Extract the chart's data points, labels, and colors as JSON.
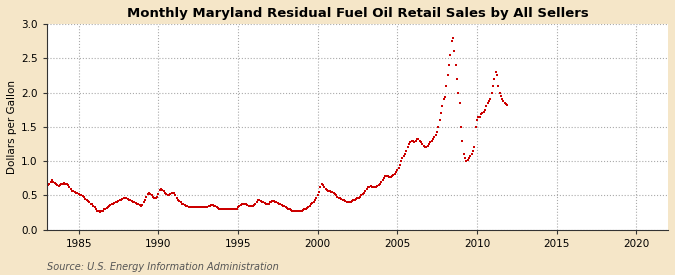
{
  "title": "Monthly Maryland Residual Fuel Oil Retail Sales by All Sellers",
  "ylabel": "Dollars per Gallon",
  "source": "Source: U.S. Energy Information Administration",
  "background_color": "#f5e6c8",
  "plot_bg_color": "#ffffff",
  "line_color": "#cc0000",
  "xlim": [
    1983,
    2022
  ],
  "ylim": [
    0.0,
    3.0
  ],
  "xticks": [
    1985,
    1990,
    1995,
    2000,
    2005,
    2010,
    2015,
    2020
  ],
  "yticks": [
    0.0,
    0.5,
    1.0,
    1.5,
    2.0,
    2.5,
    3.0
  ],
  "data": [
    [
      1983.0,
      0.63
    ],
    [
      1983.08,
      0.65
    ],
    [
      1983.17,
      0.67
    ],
    [
      1983.25,
      0.7
    ],
    [
      1983.33,
      0.72
    ],
    [
      1983.42,
      0.7
    ],
    [
      1983.5,
      0.68
    ],
    [
      1983.58,
      0.67
    ],
    [
      1983.67,
      0.65
    ],
    [
      1983.75,
      0.64
    ],
    [
      1983.83,
      0.65
    ],
    [
      1983.92,
      0.66
    ],
    [
      1984.0,
      0.67
    ],
    [
      1984.08,
      0.68
    ],
    [
      1984.17,
      0.67
    ],
    [
      1984.25,
      0.66
    ],
    [
      1984.33,
      0.65
    ],
    [
      1984.42,
      0.62
    ],
    [
      1984.5,
      0.59
    ],
    [
      1984.58,
      0.57
    ],
    [
      1984.67,
      0.56
    ],
    [
      1984.75,
      0.55
    ],
    [
      1984.83,
      0.54
    ],
    [
      1984.92,
      0.53
    ],
    [
      1985.0,
      0.52
    ],
    [
      1985.08,
      0.51
    ],
    [
      1985.17,
      0.5
    ],
    [
      1985.25,
      0.49
    ],
    [
      1985.33,
      0.48
    ],
    [
      1985.42,
      0.45
    ],
    [
      1985.5,
      0.43
    ],
    [
      1985.58,
      0.42
    ],
    [
      1985.67,
      0.4
    ],
    [
      1985.75,
      0.38
    ],
    [
      1985.83,
      0.37
    ],
    [
      1985.92,
      0.35
    ],
    [
      1986.0,
      0.33
    ],
    [
      1986.08,
      0.3
    ],
    [
      1986.17,
      0.28
    ],
    [
      1986.25,
      0.27
    ],
    [
      1986.33,
      0.26
    ],
    [
      1986.42,
      0.27
    ],
    [
      1986.5,
      0.28
    ],
    [
      1986.58,
      0.3
    ],
    [
      1986.67,
      0.31
    ],
    [
      1986.75,
      0.32
    ],
    [
      1986.83,
      0.33
    ],
    [
      1986.92,
      0.35
    ],
    [
      1987.0,
      0.36
    ],
    [
      1987.08,
      0.37
    ],
    [
      1987.17,
      0.38
    ],
    [
      1987.25,
      0.39
    ],
    [
      1987.33,
      0.4
    ],
    [
      1987.42,
      0.41
    ],
    [
      1987.5,
      0.42
    ],
    [
      1987.58,
      0.43
    ],
    [
      1987.67,
      0.44
    ],
    [
      1987.75,
      0.45
    ],
    [
      1987.83,
      0.46
    ],
    [
      1987.92,
      0.47
    ],
    [
      1988.0,
      0.46
    ],
    [
      1988.08,
      0.45
    ],
    [
      1988.17,
      0.44
    ],
    [
      1988.25,
      0.43
    ],
    [
      1988.33,
      0.42
    ],
    [
      1988.42,
      0.41
    ],
    [
      1988.5,
      0.4
    ],
    [
      1988.58,
      0.39
    ],
    [
      1988.67,
      0.38
    ],
    [
      1988.75,
      0.37
    ],
    [
      1988.83,
      0.36
    ],
    [
      1988.92,
      0.35
    ],
    [
      1989.0,
      0.36
    ],
    [
      1989.08,
      0.4
    ],
    [
      1989.17,
      0.44
    ],
    [
      1989.25,
      0.48
    ],
    [
      1989.33,
      0.52
    ],
    [
      1989.42,
      0.54
    ],
    [
      1989.5,
      0.52
    ],
    [
      1989.58,
      0.5
    ],
    [
      1989.67,
      0.48
    ],
    [
      1989.75,
      0.47
    ],
    [
      1989.83,
      0.46
    ],
    [
      1989.92,
      0.48
    ],
    [
      1990.0,
      0.52
    ],
    [
      1990.08,
      0.58
    ],
    [
      1990.17,
      0.6
    ],
    [
      1990.25,
      0.58
    ],
    [
      1990.33,
      0.56
    ],
    [
      1990.42,
      0.54
    ],
    [
      1990.5,
      0.52
    ],
    [
      1990.58,
      0.5
    ],
    [
      1990.67,
      0.51
    ],
    [
      1990.75,
      0.52
    ],
    [
      1990.83,
      0.53
    ],
    [
      1990.92,
      0.54
    ],
    [
      1991.0,
      0.53
    ],
    [
      1991.08,
      0.5
    ],
    [
      1991.17,
      0.47
    ],
    [
      1991.25,
      0.44
    ],
    [
      1991.33,
      0.42
    ],
    [
      1991.42,
      0.4
    ],
    [
      1991.5,
      0.38
    ],
    [
      1991.58,
      0.37
    ],
    [
      1991.67,
      0.36
    ],
    [
      1991.75,
      0.35
    ],
    [
      1991.83,
      0.34
    ],
    [
      1991.92,
      0.33
    ],
    [
      1992.0,
      0.33
    ],
    [
      1992.08,
      0.33
    ],
    [
      1992.17,
      0.33
    ],
    [
      1992.25,
      0.33
    ],
    [
      1992.33,
      0.33
    ],
    [
      1992.42,
      0.33
    ],
    [
      1992.5,
      0.33
    ],
    [
      1992.58,
      0.33
    ],
    [
      1992.67,
      0.33
    ],
    [
      1992.75,
      0.33
    ],
    [
      1992.83,
      0.33
    ],
    [
      1992.92,
      0.33
    ],
    [
      1993.0,
      0.33
    ],
    [
      1993.08,
      0.33
    ],
    [
      1993.17,
      0.34
    ],
    [
      1993.25,
      0.35
    ],
    [
      1993.33,
      0.36
    ],
    [
      1993.42,
      0.36
    ],
    [
      1993.5,
      0.35
    ],
    [
      1993.58,
      0.34
    ],
    [
      1993.67,
      0.33
    ],
    [
      1993.75,
      0.32
    ],
    [
      1993.83,
      0.31
    ],
    [
      1993.92,
      0.31
    ],
    [
      1994.0,
      0.31
    ],
    [
      1994.08,
      0.31
    ],
    [
      1994.17,
      0.31
    ],
    [
      1994.25,
      0.31
    ],
    [
      1994.33,
      0.31
    ],
    [
      1994.42,
      0.31
    ],
    [
      1994.5,
      0.31
    ],
    [
      1994.58,
      0.31
    ],
    [
      1994.67,
      0.31
    ],
    [
      1994.75,
      0.31
    ],
    [
      1994.83,
      0.31
    ],
    [
      1994.92,
      0.31
    ],
    [
      1995.0,
      0.33
    ],
    [
      1995.08,
      0.35
    ],
    [
      1995.17,
      0.36
    ],
    [
      1995.25,
      0.37
    ],
    [
      1995.33,
      0.38
    ],
    [
      1995.42,
      0.38
    ],
    [
      1995.5,
      0.37
    ],
    [
      1995.58,
      0.36
    ],
    [
      1995.67,
      0.35
    ],
    [
      1995.75,
      0.35
    ],
    [
      1995.83,
      0.35
    ],
    [
      1995.92,
      0.35
    ],
    [
      1996.0,
      0.36
    ],
    [
      1996.08,
      0.37
    ],
    [
      1996.17,
      0.4
    ],
    [
      1996.25,
      0.43
    ],
    [
      1996.33,
      0.43
    ],
    [
      1996.42,
      0.42
    ],
    [
      1996.5,
      0.41
    ],
    [
      1996.58,
      0.4
    ],
    [
      1996.67,
      0.39
    ],
    [
      1996.75,
      0.38
    ],
    [
      1996.83,
      0.38
    ],
    [
      1996.92,
      0.38
    ],
    [
      1997.0,
      0.4
    ],
    [
      1997.08,
      0.41
    ],
    [
      1997.17,
      0.42
    ],
    [
      1997.25,
      0.42
    ],
    [
      1997.33,
      0.41
    ],
    [
      1997.42,
      0.4
    ],
    [
      1997.5,
      0.39
    ],
    [
      1997.58,
      0.38
    ],
    [
      1997.67,
      0.37
    ],
    [
      1997.75,
      0.36
    ],
    [
      1997.83,
      0.35
    ],
    [
      1997.92,
      0.34
    ],
    [
      1998.0,
      0.33
    ],
    [
      1998.08,
      0.32
    ],
    [
      1998.17,
      0.31
    ],
    [
      1998.25,
      0.3
    ],
    [
      1998.33,
      0.29
    ],
    [
      1998.42,
      0.28
    ],
    [
      1998.5,
      0.27
    ],
    [
      1998.58,
      0.27
    ],
    [
      1998.67,
      0.27
    ],
    [
      1998.75,
      0.27
    ],
    [
      1998.83,
      0.27
    ],
    [
      1998.92,
      0.27
    ],
    [
      1999.0,
      0.28
    ],
    [
      1999.08,
      0.29
    ],
    [
      1999.17,
      0.3
    ],
    [
      1999.25,
      0.31
    ],
    [
      1999.33,
      0.32
    ],
    [
      1999.42,
      0.33
    ],
    [
      1999.5,
      0.35
    ],
    [
      1999.58,
      0.37
    ],
    [
      1999.67,
      0.39
    ],
    [
      1999.75,
      0.41
    ],
    [
      1999.83,
      0.43
    ],
    [
      1999.92,
      0.46
    ],
    [
      2000.0,
      0.5
    ],
    [
      2000.08,
      0.55
    ],
    [
      2000.17,
      0.62
    ],
    [
      2000.25,
      0.66
    ],
    [
      2000.33,
      0.65
    ],
    [
      2000.42,
      0.63
    ],
    [
      2000.5,
      0.6
    ],
    [
      2000.58,
      0.58
    ],
    [
      2000.67,
      0.57
    ],
    [
      2000.75,
      0.56
    ],
    [
      2000.83,
      0.55
    ],
    [
      2000.92,
      0.55
    ],
    [
      2001.0,
      0.54
    ],
    [
      2001.08,
      0.52
    ],
    [
      2001.17,
      0.5
    ],
    [
      2001.25,
      0.48
    ],
    [
      2001.33,
      0.47
    ],
    [
      2001.42,
      0.46
    ],
    [
      2001.5,
      0.45
    ],
    [
      2001.58,
      0.44
    ],
    [
      2001.67,
      0.43
    ],
    [
      2001.75,
      0.42
    ],
    [
      2001.83,
      0.41
    ],
    [
      2001.92,
      0.4
    ],
    [
      2002.0,
      0.4
    ],
    [
      2002.08,
      0.41
    ],
    [
      2002.17,
      0.42
    ],
    [
      2002.25,
      0.43
    ],
    [
      2002.33,
      0.44
    ],
    [
      2002.42,
      0.45
    ],
    [
      2002.5,
      0.46
    ],
    [
      2002.58,
      0.47
    ],
    [
      2002.67,
      0.48
    ],
    [
      2002.75,
      0.5
    ],
    [
      2002.83,
      0.52
    ],
    [
      2002.92,
      0.54
    ],
    [
      2003.0,
      0.57
    ],
    [
      2003.08,
      0.6
    ],
    [
      2003.17,
      0.62
    ],
    [
      2003.25,
      0.63
    ],
    [
      2003.33,
      0.64
    ],
    [
      2003.42,
      0.63
    ],
    [
      2003.5,
      0.62
    ],
    [
      2003.58,
      0.62
    ],
    [
      2003.67,
      0.63
    ],
    [
      2003.75,
      0.64
    ],
    [
      2003.83,
      0.65
    ],
    [
      2003.92,
      0.67
    ],
    [
      2004.0,
      0.7
    ],
    [
      2004.08,
      0.73
    ],
    [
      2004.17,
      0.76
    ],
    [
      2004.25,
      0.78
    ],
    [
      2004.33,
      0.79
    ],
    [
      2004.42,
      0.78
    ],
    [
      2004.5,
      0.77
    ],
    [
      2004.58,
      0.77
    ],
    [
      2004.67,
      0.78
    ],
    [
      2004.75,
      0.8
    ],
    [
      2004.83,
      0.82
    ],
    [
      2004.92,
      0.84
    ],
    [
      2005.0,
      0.87
    ],
    [
      2005.08,
      0.9
    ],
    [
      2005.17,
      0.95
    ],
    [
      2005.25,
      1.0
    ],
    [
      2005.33,
      1.05
    ],
    [
      2005.42,
      1.08
    ],
    [
      2005.5,
      1.1
    ],
    [
      2005.58,
      1.15
    ],
    [
      2005.67,
      1.2
    ],
    [
      2005.75,
      1.25
    ],
    [
      2005.83,
      1.28
    ],
    [
      2005.92,
      1.3
    ],
    [
      2006.0,
      1.3
    ],
    [
      2006.08,
      1.28
    ],
    [
      2006.17,
      1.3
    ],
    [
      2006.25,
      1.32
    ],
    [
      2006.33,
      1.33
    ],
    [
      2006.42,
      1.3
    ],
    [
      2006.5,
      1.28
    ],
    [
      2006.58,
      1.25
    ],
    [
      2006.67,
      1.22
    ],
    [
      2006.75,
      1.2
    ],
    [
      2006.83,
      1.2
    ],
    [
      2006.92,
      1.22
    ],
    [
      2007.0,
      1.25
    ],
    [
      2007.08,
      1.28
    ],
    [
      2007.17,
      1.3
    ],
    [
      2007.25,
      1.32
    ],
    [
      2007.33,
      1.35
    ],
    [
      2007.42,
      1.38
    ],
    [
      2007.5,
      1.42
    ],
    [
      2007.58,
      1.5
    ],
    [
      2007.67,
      1.6
    ],
    [
      2007.75,
      1.7
    ],
    [
      2007.83,
      1.8
    ],
    [
      2007.92,
      1.9
    ],
    [
      2008.0,
      1.93
    ],
    [
      2008.08,
      2.1
    ],
    [
      2008.17,
      2.25
    ],
    [
      2008.25,
      2.4
    ],
    [
      2008.33,
      2.55
    ],
    [
      2008.42,
      2.75
    ],
    [
      2008.5,
      2.8
    ],
    [
      2008.58,
      2.6
    ],
    [
      2008.67,
      2.4
    ],
    [
      2008.75,
      2.2
    ],
    [
      2008.83,
      2.0
    ],
    [
      2008.92,
      1.85
    ],
    [
      2009.0,
      1.5
    ],
    [
      2009.08,
      1.3
    ],
    [
      2009.17,
      1.1
    ],
    [
      2009.25,
      1.05
    ],
    [
      2009.33,
      1.0
    ],
    [
      2009.42,
      1.02
    ],
    [
      2009.5,
      1.05
    ],
    [
      2009.58,
      1.08
    ],
    [
      2009.67,
      1.1
    ],
    [
      2009.75,
      1.15
    ],
    [
      2009.83,
      1.2
    ],
    [
      2009.92,
      1.5
    ],
    [
      2010.0,
      1.6
    ],
    [
      2010.08,
      1.65
    ],
    [
      2010.17,
      1.65
    ],
    [
      2010.25,
      1.68
    ],
    [
      2010.33,
      1.7
    ],
    [
      2010.42,
      1.72
    ],
    [
      2010.5,
      1.75
    ],
    [
      2010.58,
      1.8
    ],
    [
      2010.67,
      1.85
    ],
    [
      2010.75,
      1.88
    ],
    [
      2010.83,
      1.9
    ],
    [
      2010.92,
      2.0
    ],
    [
      2011.0,
      2.1
    ],
    [
      2011.08,
      2.2
    ],
    [
      2011.17,
      2.3
    ],
    [
      2011.25,
      2.25
    ],
    [
      2011.33,
      2.1
    ],
    [
      2011.42,
      2.0
    ],
    [
      2011.5,
      1.95
    ],
    [
      2011.58,
      1.9
    ],
    [
      2011.67,
      1.88
    ],
    [
      2011.75,
      1.85
    ],
    [
      2011.83,
      1.83
    ],
    [
      2011.92,
      1.82
    ]
  ]
}
